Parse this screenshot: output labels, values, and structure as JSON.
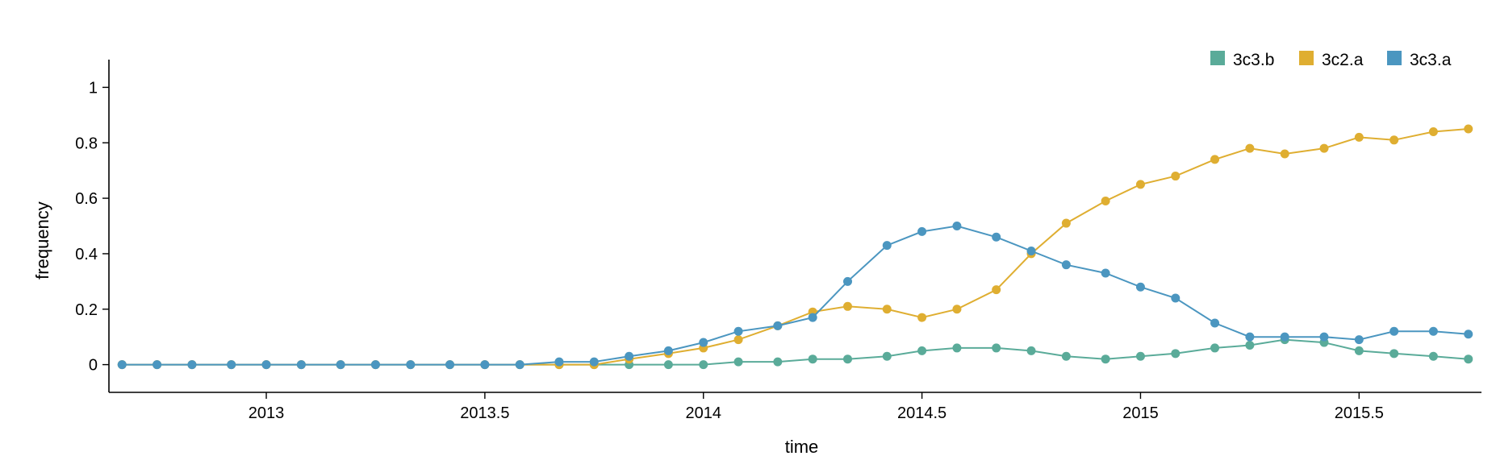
{
  "chart_data": {
    "type": "line",
    "xlabel": "time",
    "ylabel": "frequency",
    "xlim": [
      2012.64,
      2015.78
    ],
    "ylim": [
      -0.1,
      1.1
    ],
    "xticks": [
      2013,
      2013.5,
      2014,
      2014.5,
      2015,
      2015.5
    ],
    "xtick_labels": [
      "2013",
      "2013.5",
      "2014",
      "2014.5",
      "2015",
      "2015.5"
    ],
    "yticks": [
      0,
      0.2,
      0.4,
      0.6,
      0.8,
      1
    ],
    "ytick_labels": [
      "0",
      "0.2",
      "0.4",
      "0.6",
      "0.8",
      "1"
    ],
    "legend_position": "top-right",
    "x": [
      2012.67,
      2012.75,
      2012.83,
      2012.92,
      2013.0,
      2013.08,
      2013.17,
      2013.25,
      2013.33,
      2013.42,
      2013.5,
      2013.58,
      2013.67,
      2013.75,
      2013.83,
      2013.92,
      2014.0,
      2014.08,
      2014.17,
      2014.25,
      2014.33,
      2014.42,
      2014.5,
      2014.58,
      2014.67,
      2014.75,
      2014.83,
      2014.92,
      2015.0,
      2015.08,
      2015.17,
      2015.25,
      2015.33,
      2015.42,
      2015.5,
      2015.58,
      2015.67,
      2015.75
    ],
    "series": [
      {
        "name": "3c3.b",
        "color": "#5aab99",
        "values": [
          0,
          0,
          0,
          0,
          0,
          0,
          0,
          0,
          0,
          0,
          0,
          0,
          0,
          0,
          0,
          0,
          0,
          0.01,
          0.01,
          0.02,
          0.02,
          0.03,
          0.05,
          0.06,
          0.06,
          0.05,
          0.03,
          0.02,
          0.03,
          0.04,
          0.06,
          0.07,
          0.09,
          0.08,
          0.05,
          0.04,
          0.03,
          0.02
        ]
      },
      {
        "name": "3c2.a",
        "color": "#dfae31",
        "values": [
          0,
          0,
          0,
          0,
          0,
          0,
          0,
          0,
          0,
          0,
          0,
          0,
          0,
          0,
          0.02,
          0.04,
          0.06,
          0.09,
          0.14,
          0.19,
          0.21,
          0.2,
          0.17,
          0.2,
          0.27,
          0.4,
          0.51,
          0.59,
          0.65,
          0.68,
          0.74,
          0.78,
          0.76,
          0.78,
          0.82,
          0.81,
          0.84,
          0.85
        ]
      },
      {
        "name": "3c3.a",
        "color": "#4b96c0",
        "values": [
          0,
          0,
          0,
          0,
          0,
          0,
          0,
          0,
          0,
          0,
          0,
          0,
          0.01,
          0.01,
          0.03,
          0.05,
          0.08,
          0.12,
          0.14,
          0.17,
          0.3,
          0.43,
          0.48,
          0.5,
          0.46,
          0.41,
          0.36,
          0.33,
          0.28,
          0.24,
          0.15,
          0.1,
          0.1,
          0.1,
          0.09,
          0.12,
          0.12,
          0.11
        ]
      }
    ]
  }
}
